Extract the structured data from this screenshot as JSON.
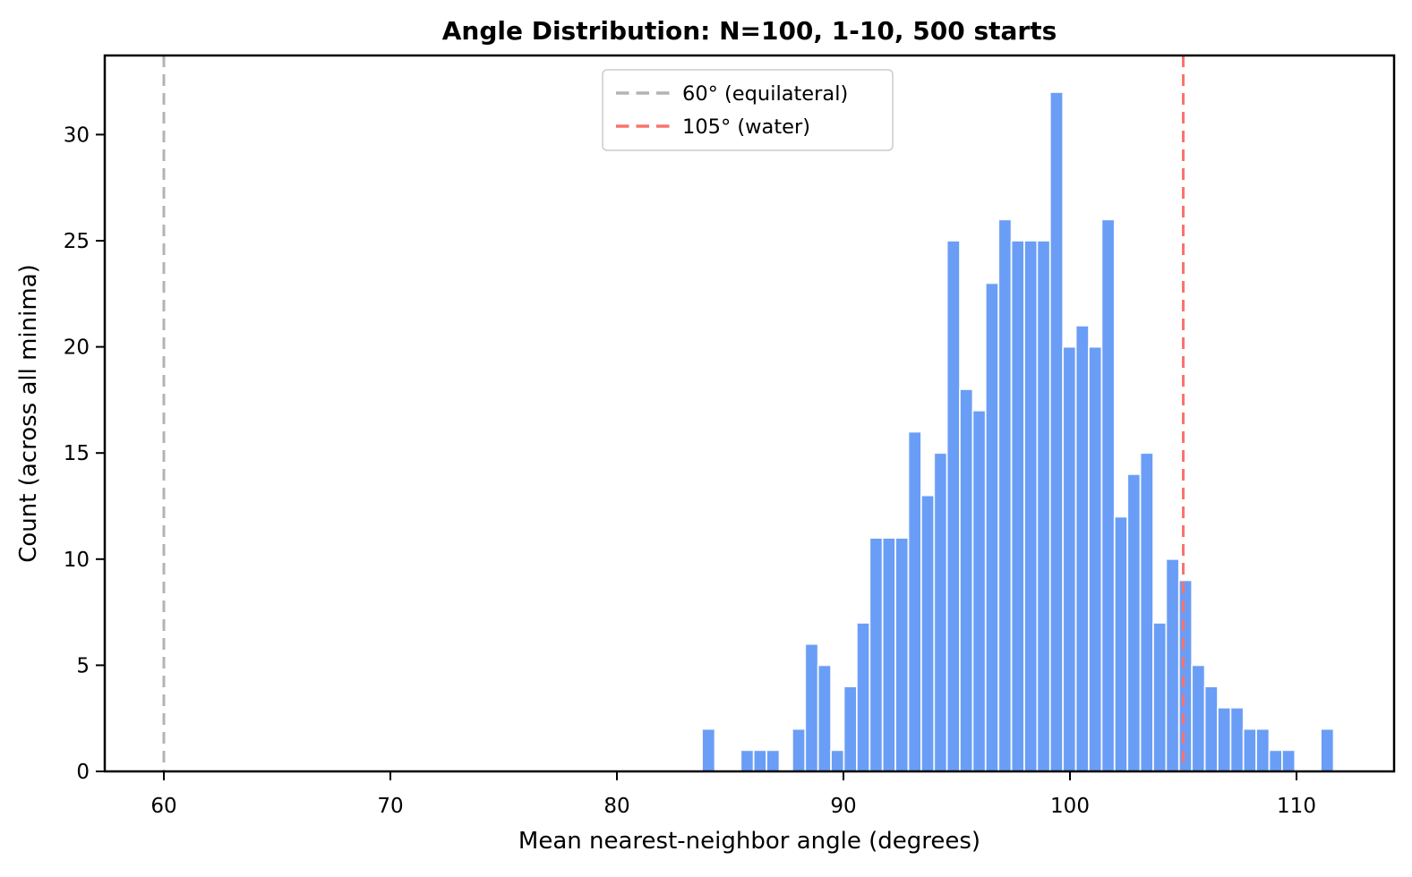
{
  "figure": {
    "title": "Angle Distribution: N=100, 1-10, 500 starts",
    "xlabel": "Mean nearest-neighbor angle (degrees)",
    "ylabel": "Count (across all minima)"
  },
  "chart_data": {
    "type": "bar",
    "subtype": "histogram",
    "title": "Angle Distribution: N=100, 1-10, 500 starts",
    "xlabel": "Mean nearest-neighbor angle (degrees)",
    "ylabel": "Count (across all minima)",
    "xlim": [
      57.4,
      114.3
    ],
    "ylim": [
      0,
      33.7
    ],
    "x_ticks": [
      60,
      70,
      80,
      90,
      100,
      110
    ],
    "y_ticks": [
      0,
      5,
      10,
      15,
      20,
      25,
      30
    ],
    "grid": false,
    "total_samples": 500,
    "bin_start_deg": 83.76,
    "bin_width_deg": 0.569,
    "counts": [
      2,
      0,
      0,
      1,
      1,
      1,
      0,
      2,
      6,
      5,
      1,
      4,
      7,
      11,
      11,
      11,
      16,
      13,
      15,
      25,
      18,
      17,
      23,
      26,
      25,
      25,
      25,
      32,
      20,
      21,
      20,
      26,
      12,
      14,
      15,
      7,
      10,
      9,
      5,
      4,
      3,
      3,
      2,
      2,
      1,
      1,
      0,
      0,
      2
    ],
    "colors": {
      "bar_fill": "#6a9df5",
      "bar_edge": "#ffffff",
      "equilateral_line": "#b3b3b3",
      "water_line": "#f8736d",
      "axis": "#000000",
      "legend_border": "#cccccc"
    },
    "vlines": [
      {
        "x": 60,
        "label": "60° (equilateral)",
        "style": "dashed"
      },
      {
        "x": 105,
        "label": "105° (water)",
        "style": "dashed"
      }
    ],
    "legend_position": "upper center"
  }
}
